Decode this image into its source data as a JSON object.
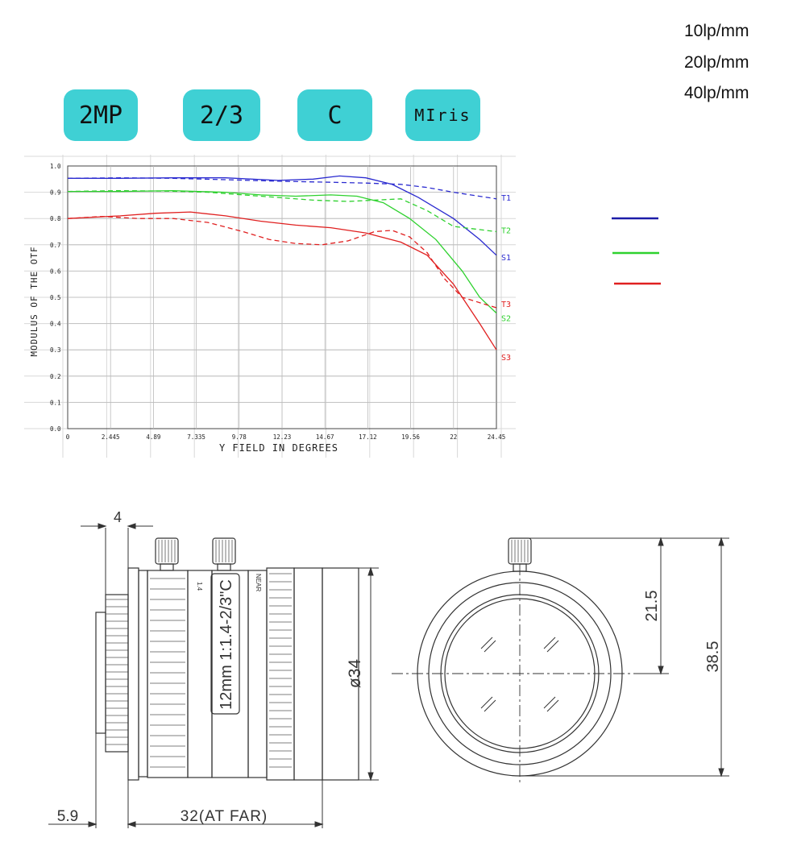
{
  "badges": [
    {
      "label": "2MP"
    },
    {
      "label": "2/3"
    },
    {
      "label": "C"
    },
    {
      "label": "MIris"
    }
  ],
  "legend": {
    "items": [
      {
        "label": "10lp/mm",
        "color": "#1c1ca8"
      },
      {
        "label": "20lp/mm",
        "color": "#2ed12e"
      },
      {
        "label": "40lp/mm",
        "color": "#e02020"
      }
    ]
  },
  "chart_data": {
    "type": "line",
    "xlabel": "Y FIELD IN DEGREES",
    "ylabel": "MODULUS OF THE OTF",
    "xlim": [
      0,
      24.45
    ],
    "ylim": [
      0,
      1
    ],
    "x_ticks": [
      "0",
      "2.445",
      "4.89",
      "7.335",
      "9.78",
      "12.23",
      "14.67",
      "17.12",
      "19.56",
      "22",
      "24.45"
    ],
    "y_ticks": [
      "0.0",
      "0.1",
      "0.2",
      "0.3",
      "0.4",
      "0.5",
      "0.6",
      "0.7",
      "0.8",
      "0.9",
      "1.0"
    ],
    "grid": true,
    "series": [
      {
        "name": "T1",
        "color": "#2b2bd0",
        "dashed": true,
        "x": [
          0,
          3,
          6,
          9,
          12,
          15,
          17,
          19,
          20.5,
          22,
          24.45
        ],
        "y": [
          0.953,
          0.955,
          0.953,
          0.948,
          0.942,
          0.938,
          0.935,
          0.93,
          0.918,
          0.9,
          0.875
        ]
      },
      {
        "name": "S1",
        "color": "#2b2bd0",
        "dashed": false,
        "x": [
          0,
          3,
          6,
          9,
          12,
          14,
          15.5,
          17,
          18.5,
          20,
          22,
          23.5,
          24.45
        ],
        "y": [
          0.953,
          0.953,
          0.955,
          0.955,
          0.945,
          0.95,
          0.962,
          0.955,
          0.93,
          0.88,
          0.8,
          0.72,
          0.66
        ]
      },
      {
        "name": "T2",
        "color": "#2ed12e",
        "dashed": true,
        "x": [
          0,
          3,
          6,
          8,
          10,
          12,
          14,
          16,
          17.5,
          19,
          20.5,
          22,
          24.45
        ],
        "y": [
          0.903,
          0.906,
          0.904,
          0.9,
          0.89,
          0.88,
          0.87,
          0.865,
          0.87,
          0.875,
          0.83,
          0.77,
          0.75
        ]
      },
      {
        "name": "S2",
        "color": "#2ed12e",
        "dashed": false,
        "x": [
          0,
          3,
          6,
          9,
          11,
          13,
          15,
          16.5,
          18,
          19.5,
          21,
          22.5,
          23.5,
          24.45
        ],
        "y": [
          0.903,
          0.903,
          0.906,
          0.9,
          0.89,
          0.885,
          0.89,
          0.885,
          0.86,
          0.8,
          0.72,
          0.6,
          0.5,
          0.44
        ]
      },
      {
        "name": "T3",
        "color": "#e02020",
        "dashed": true,
        "x": [
          0,
          2,
          4,
          6,
          8,
          10,
          11.5,
          13,
          14.5,
          16,
          17.5,
          18.5,
          19.5,
          20.5,
          21.5,
          22.5,
          24.45
        ],
        "y": [
          0.8,
          0.808,
          0.8,
          0.8,
          0.785,
          0.75,
          0.72,
          0.705,
          0.7,
          0.715,
          0.75,
          0.755,
          0.73,
          0.67,
          0.57,
          0.5,
          0.46
        ]
      },
      {
        "name": "S3",
        "color": "#e02020",
        "dashed": false,
        "x": [
          0,
          3,
          5,
          7,
          9,
          11,
          13,
          15,
          17,
          19,
          20.5,
          22,
          23.5,
          24.45
        ],
        "y": [
          0.8,
          0.81,
          0.82,
          0.825,
          0.81,
          0.79,
          0.775,
          0.765,
          0.745,
          0.71,
          0.66,
          0.55,
          0.4,
          0.3
        ]
      }
    ],
    "series_labels": [
      "T1",
      "T2",
      "S1",
      "T3",
      "S2",
      "S3"
    ]
  },
  "drawing": {
    "dim_4": "4",
    "dim_5_9": "5.9",
    "dim_32": "32(AT FAR)",
    "dim_34": "ø34",
    "dim_21_5": "21.5",
    "dim_38_5": "38.5",
    "lens_text": "12mm 1:1.4-2/3\"C",
    "mark_left": "1.4",
    "mark_right": "NEAR"
  }
}
